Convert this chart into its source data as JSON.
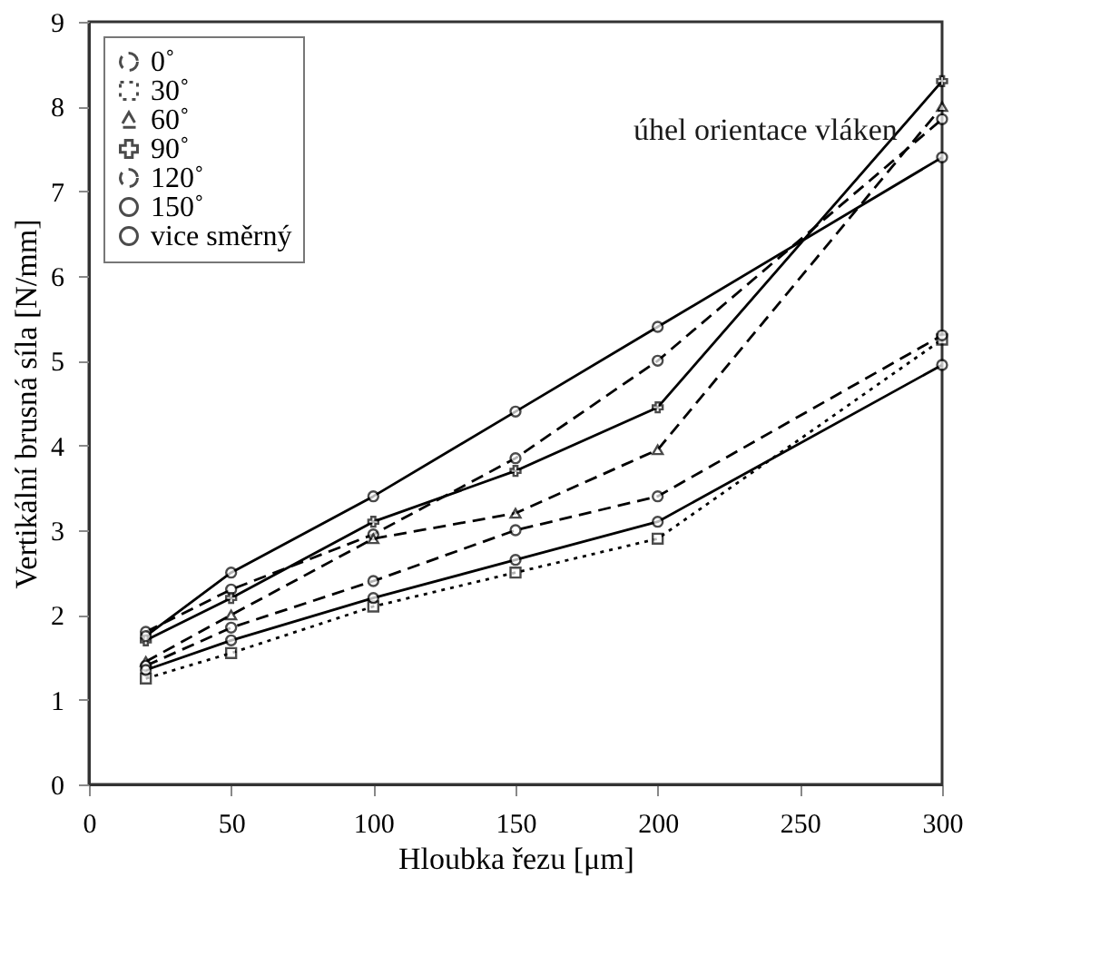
{
  "chart_data": {
    "type": "line",
    "xlabel": "Hloubka řezu   [μm]",
    "ylabel": "Vertikální brusná síla   [N/mm]",
    "x": [
      20,
      50,
      100,
      150,
      200,
      300
    ],
    "xlim": [
      0,
      300
    ],
    "xticks": [
      0,
      50,
      100,
      150,
      200,
      250,
      300
    ],
    "ylim": [
      0,
      9
    ],
    "yticks": [
      0,
      1,
      2,
      3,
      4,
      5,
      6,
      7,
      8,
      9
    ],
    "grid": false,
    "legend": "top left",
    "annotations": [
      {
        "text": "úhel orientace vláken"
      }
    ],
    "series": [
      {
        "name": "0˚",
        "color": "#000000",
        "marker": "circle",
        "line_style": "dashed",
        "values": [
          1.8,
          2.3,
          2.95,
          3.85,
          5.0,
          7.85
        ]
      },
      {
        "name": "30˚",
        "color": "#000000",
        "marker": "square",
        "line_style": "dotted",
        "values": [
          1.25,
          1.55,
          2.1,
          2.5,
          2.9,
          5.25
        ]
      },
      {
        "name": "60˚",
        "color": "#000000",
        "marker": "triangle",
        "line_style": "dashed",
        "values": [
          1.45,
          2.0,
          2.9,
          3.2,
          3.95,
          8.0
        ]
      },
      {
        "name": "90˚",
        "color": "#000000",
        "marker": "cross",
        "line_style": "solid",
        "values": [
          1.7,
          2.2,
          3.1,
          3.7,
          4.45,
          8.3
        ]
      },
      {
        "name": "120˚",
        "color": "#000000",
        "marker": "circle",
        "line_style": "dashed",
        "values": [
          1.4,
          1.85,
          2.4,
          3.0,
          3.4,
          5.3
        ]
      },
      {
        "name": "150˚",
        "color": "#000000",
        "marker": "circle",
        "line_style": "solid",
        "values": [
          1.35,
          1.7,
          2.2,
          2.65,
          3.1,
          4.95
        ]
      },
      {
        "name": "vice směrný",
        "color": "#000000",
        "marker": "circle",
        "line_style": "solid",
        "values": [
          1.75,
          2.5,
          3.4,
          4.4,
          5.4,
          7.4
        ]
      }
    ]
  }
}
